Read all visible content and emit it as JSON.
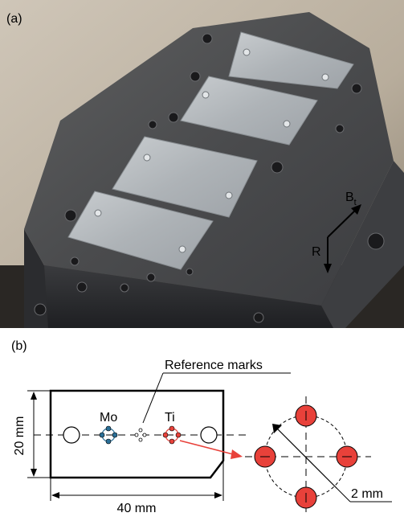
{
  "photo": {
    "panel_label": "(a)",
    "arrow_bt_main": "B",
    "arrow_bt_sub": "t",
    "arrow_r": "R"
  },
  "diagram": {
    "panel_label": "(b)",
    "reference_marks_label": "Reference marks",
    "mo_label": "Mo",
    "ti_label": "Ti",
    "height_label": "20 mm",
    "width_label": "40 mm",
    "spacing_label": "2 mm",
    "colors": {
      "mo": "#2a6f97",
      "ti": "#e8413a"
    }
  }
}
